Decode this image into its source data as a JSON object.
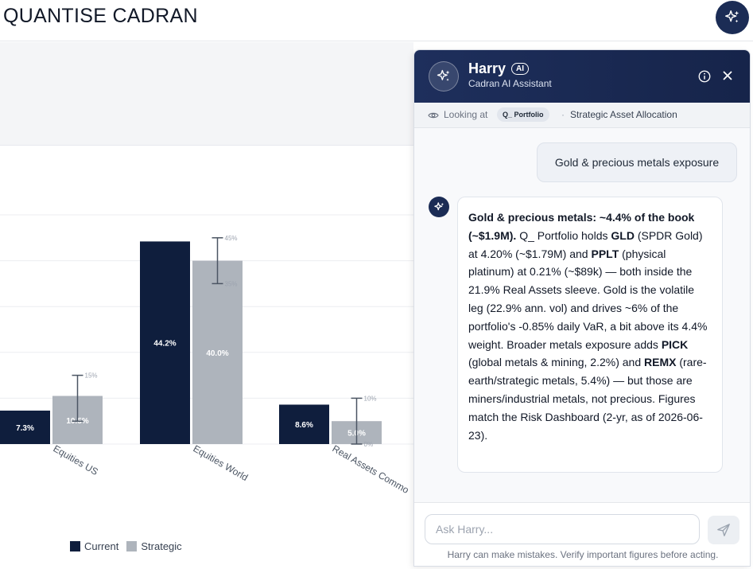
{
  "app": {
    "title": "QUANTISE CADRAN",
    "assistant_button_icon": "sparkle-icon"
  },
  "chart_data": {
    "type": "bar",
    "categories": [
      "Equities US",
      "Equities World",
      "Real Assets Commo"
    ],
    "series": [
      {
        "name": "Current",
        "color": "#0f1e3d",
        "values": [
          7.3,
          44.2,
          8.6
        ],
        "labels": [
          "7.3%",
          "44.2%",
          "8.6%"
        ]
      },
      {
        "name": "Strategic",
        "color": "#aeb4bc",
        "values": [
          10.5,
          40.0,
          5.0
        ],
        "labels": [
          "10.5%",
          "40.0%",
          "5.0%"
        ],
        "ranges": [
          [
            5,
            15
          ],
          [
            35,
            45
          ],
          [
            0,
            10
          ]
        ],
        "range_labels": [
          [
            "",
            "15%"
          ],
          [
            "35%",
            "45%"
          ],
          [
            "0%",
            "10%"
          ]
        ]
      }
    ],
    "ylim": [
      0,
      50
    ],
    "grid": true,
    "legend": "bottom-left"
  },
  "assistant": {
    "name": "Harry",
    "badge": "AI",
    "subtitle": "Cadran AI Assistant",
    "context": {
      "label": "Looking at",
      "chip": "Q_ Portfolio",
      "separator": "·",
      "page": "Strategic Asset Allocation"
    },
    "user_message": "Gold & precious metals exposure",
    "response": [
      {
        "t": "Gold & precious metals: ~4.4% of the book (~$1.9M).",
        "b": true
      },
      {
        "t": " Q_ Portfolio holds "
      },
      {
        "t": "GLD",
        "b": true
      },
      {
        "t": " (SPDR Gold) at 4.20% (~$1.79M) and "
      },
      {
        "t": "PPLT",
        "b": true
      },
      {
        "t": " (physical platinum) at 0.21% (~$89k) — both inside the 21.9% Real Assets sleeve. Gold is the volatile leg (22.9% ann. vol) and drives ~6% of the portfolio's -0.85% daily VaR, a bit above its 4.4% weight. Broader metals exposure adds "
      },
      {
        "t": "PICK",
        "b": true
      },
      {
        "t": " (global metals & mining, 2.2%) and "
      },
      {
        "t": "REMX",
        "b": true
      },
      {
        "t": " (rare-earth/strategic metals, 5.4%) — but those are miners/industrial metals, not precious. Figures match the Risk Dashboard (2-yr, as of 2026-06-23)."
      }
    ],
    "input_placeholder": "Ask Harry...",
    "input_value": "",
    "disclaimer": "Harry can make mistakes. Verify important figures before acting."
  }
}
